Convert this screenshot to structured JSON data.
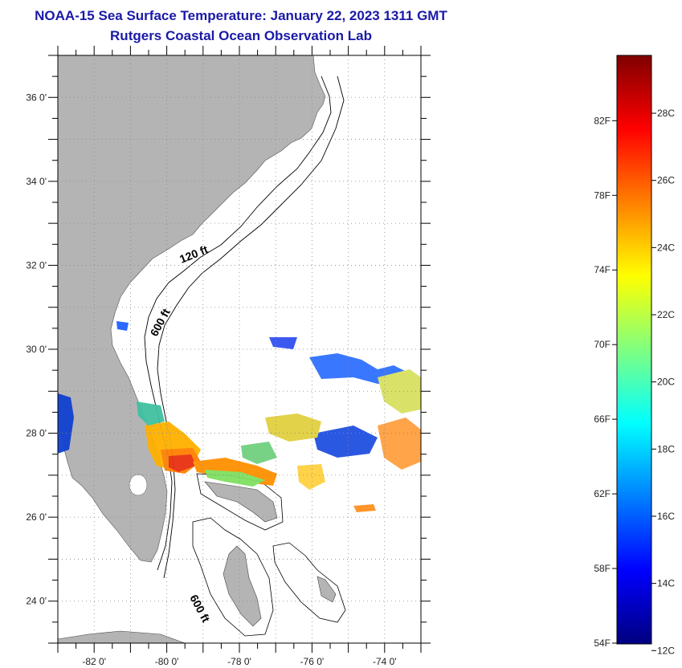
{
  "title": "NOAA-15 Sea Surface Temperature:  January 22, 2023 1311 GMT",
  "subtitle": "Rutgers Coastal Ocean Observation Lab",
  "map": {
    "lon_range": [
      -83,
      -73
    ],
    "lat_range": [
      23,
      37
    ],
    "lat_labels": [
      {
        "value": 36,
        "label": "36 0'"
      },
      {
        "value": 34,
        "label": "34 0'"
      },
      {
        "value": 32,
        "label": "32 0'"
      },
      {
        "value": 30,
        "label": "30 0'"
      },
      {
        "value": 28,
        "label": "28 0'"
      },
      {
        "value": 26,
        "label": "26 0'"
      },
      {
        "value": 24,
        "label": "24 0'"
      }
    ],
    "lon_labels": [
      {
        "value": -82,
        "label": "-82 0'"
      },
      {
        "value": -80,
        "label": "-80 0'"
      },
      {
        "value": -78,
        "label": "-78 0'"
      },
      {
        "value": -76,
        "label": "-76 0'"
      },
      {
        "value": -74,
        "label": "-74 0'"
      }
    ],
    "contour_labels": [
      "120 ft",
      "600 ft",
      "600 ft"
    ],
    "land_color": "#b4b4b4"
  },
  "colorbar": {
    "fahrenheit_labels": [
      "82F",
      "78F",
      "74F",
      "70F",
      "66F",
      "62F",
      "58F",
      "54F"
    ],
    "celsius_labels": [
      "28C",
      "26C",
      "24C",
      "22C",
      "20C",
      "18C",
      "16C",
      "14C",
      "12C"
    ],
    "colors": [
      "#000080",
      "#0000ff",
      "#0080ff",
      "#00ffff",
      "#80ff80",
      "#ffff00",
      "#ff8000",
      "#ff0000",
      "#800000"
    ]
  }
}
